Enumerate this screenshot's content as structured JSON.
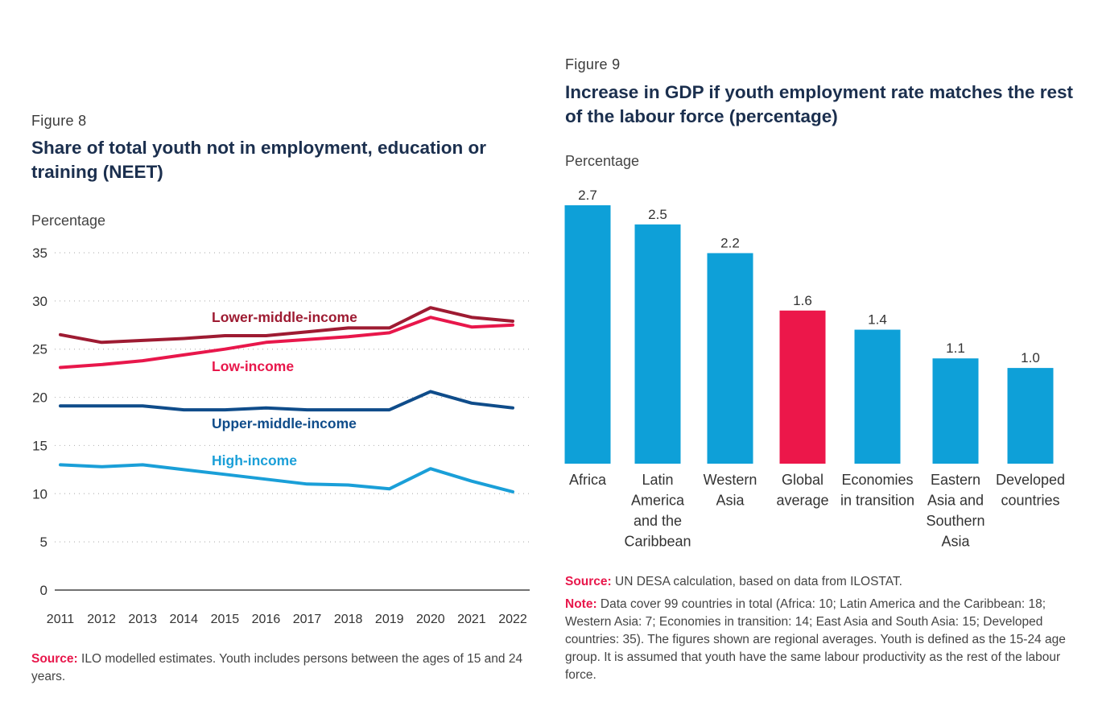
{
  "fig8": {
    "label": "Figure 8",
    "title": "Share of total youth not in employment, education or training (NEET)",
    "source_label": "Source:",
    "source_text": " ILO modelled estimates. Youth includes persons between the ages of 15 and 24 years.",
    "chart_data": {
      "type": "line",
      "title": "Share of total youth not in employment, education or training (NEET)",
      "ylabel": "Percentage",
      "xlabel": "",
      "ylim": [
        0,
        35
      ],
      "yticks": [
        0,
        5,
        10,
        15,
        20,
        25,
        30,
        35
      ],
      "grid": true,
      "x": [
        "2011",
        "2012",
        "2013",
        "2014",
        "2015",
        "2016",
        "2017",
        "2018",
        "2019",
        "2020",
        "2021",
        "2022"
      ],
      "series": [
        {
          "name": "Lower-middle-income",
          "color": "#9e1b32",
          "values": [
            26.5,
            25.7,
            25.9,
            26.1,
            26.4,
            26.4,
            26.8,
            27.2,
            27.2,
            29.3,
            28.3,
            27.9
          ]
        },
        {
          "name": "Low-income",
          "color": "#e8174b",
          "values": [
            23.1,
            23.4,
            23.8,
            24.4,
            25.0,
            25.7,
            26.0,
            26.3,
            26.7,
            28.3,
            27.3,
            27.5
          ]
        },
        {
          "name": "Upper-middle-income",
          "color": "#0f4c8a",
          "values": [
            19.1,
            19.1,
            19.1,
            18.7,
            18.7,
            18.9,
            18.7,
            18.7,
            18.7,
            20.6,
            19.4,
            18.9
          ]
        },
        {
          "name": "High-income",
          "color": "#1a9fd8",
          "values": [
            13.0,
            12.8,
            13.0,
            12.5,
            12.0,
            11.5,
            11.0,
            10.9,
            10.5,
            12.6,
            11.3,
            10.2
          ]
        }
      ]
    }
  },
  "fig9": {
    "label": "Figure 9",
    "title": "Increase in GDP if youth employment rate matches the rest of the labour force (percentage)",
    "source_label": "Source:",
    "source_text": " UN DESA calculation, based on data from ILOSTAT.",
    "note_label": "Note:",
    "note_text": " Data cover 99 countries in total (Africa: 10; Latin America and the Caribbean: 18; Western Asia: 7; Economies in transition: 14; East Asia and South Asia: 15; Developed countries: 35). The figures shown are regional averages. Youth is defined as the 15-24 age group. It is assumed that youth have the same labour productivity as the rest of the labour force.",
    "chart_data": {
      "type": "bar",
      "title": "Increase in GDP if youth employment rate matches the rest of the labour force (percentage)",
      "ylabel": "Percentage",
      "xlabel": "",
      "ylim": [
        0,
        2.7
      ],
      "categories": [
        "Africa",
        "Latin America and the Caribbean",
        "Western Asia",
        "Global average",
        "Economies in transition",
        "Eastern Asia and Southern Asia",
        "Developed countries"
      ],
      "category_lines": [
        [
          "Africa"
        ],
        [
          "Latin",
          "America",
          "and the",
          "Caribbean"
        ],
        [
          "Western",
          "Asia"
        ],
        [
          "Global",
          "average"
        ],
        [
          "Economies",
          "in transition"
        ],
        [
          "Eastern",
          "Asia and",
          "Southern",
          "Asia"
        ],
        [
          "Developed",
          "countries"
        ]
      ],
      "values": [
        2.7,
        2.5,
        2.2,
        1.6,
        1.4,
        1.1,
        1.0
      ],
      "value_labels": [
        "2.7",
        "2.5",
        "2.2",
        "1.6",
        "1.4",
        "1.1",
        "1.0"
      ],
      "colors": [
        "#0ea0d8",
        "#0ea0d8",
        "#0ea0d8",
        "#ec174a",
        "#0ea0d8",
        "#0ea0d8",
        "#0ea0d8"
      ]
    }
  }
}
